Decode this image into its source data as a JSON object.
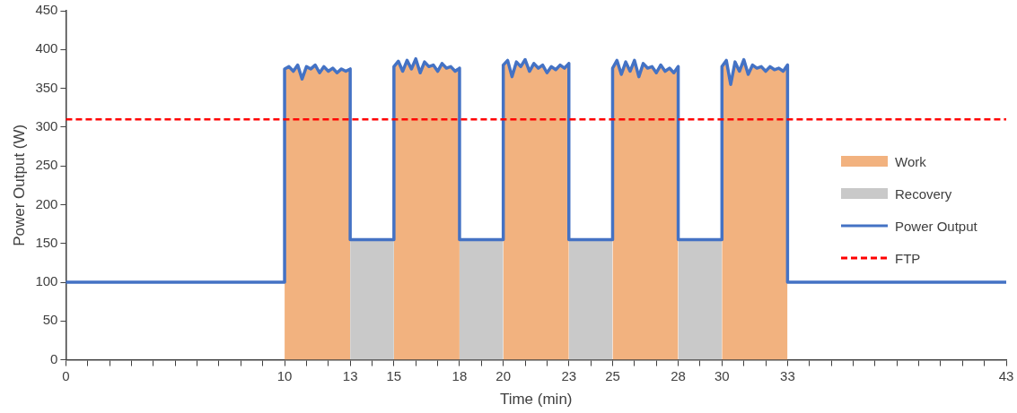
{
  "chart_data": {
    "type": "line",
    "xlabel": "Time (min)",
    "ylabel": "Power Output (W)",
    "xlim": [
      0,
      43
    ],
    "ylim": [
      0,
      450
    ],
    "yticks": [
      0,
      50,
      100,
      150,
      200,
      250,
      300,
      350,
      400,
      450
    ],
    "xticks": [
      0,
      {
        "value": 1,
        "label": null
      },
      {
        "value": 2,
        "label": null
      },
      {
        "value": 3,
        "label": null
      },
      {
        "value": 4,
        "label": null
      },
      {
        "value": 5,
        "label": null
      },
      {
        "value": 6,
        "label": null
      },
      {
        "value": 7,
        "label": null
      },
      {
        "value": 8,
        "label": null
      },
      {
        "value": 9,
        "label": null
      },
      10,
      {
        "value": 11,
        "label": null
      },
      {
        "value": 12,
        "label": null
      },
      13,
      {
        "value": 14,
        "label": null
      },
      15,
      {
        "value": 16,
        "label": null
      },
      {
        "value": 17,
        "label": null
      },
      18,
      {
        "value": 19,
        "label": null
      },
      20,
      {
        "value": 21,
        "label": null
      },
      {
        "value": 22,
        "label": null
      },
      23,
      {
        "value": 24,
        "label": null
      },
      25,
      {
        "value": 26,
        "label": null
      },
      {
        "value": 27,
        "label": null
      },
      28,
      {
        "value": 29,
        "label": null
      },
      30,
      {
        "value": 31,
        "label": null
      },
      {
        "value": 32,
        "label": null
      },
      33,
      {
        "value": 34,
        "label": null
      },
      {
        "value": 35,
        "label": null
      },
      {
        "value": 36,
        "label": null
      },
      {
        "value": 37,
        "label": null
      },
      {
        "value": 38,
        "label": null
      },
      {
        "value": 39,
        "label": null
      },
      {
        "value": 40,
        "label": null
      },
      {
        "value": 41,
        "label": null
      },
      {
        "value": 42,
        "label": null
      },
      43
    ],
    "grid": false,
    "legend": "right",
    "marker": "none",
    "series": [
      {
        "name": "Work",
        "type": "area",
        "color": "#f2b27f",
        "x": [
          10,
          10.2,
          10.4,
          10.6,
          10.8,
          11,
          11.2,
          11.4,
          11.6,
          11.8,
          12,
          12.2,
          12.4,
          12.6,
          12.8,
          13,
          14,
          15,
          15.2,
          15.4,
          15.6,
          15.8,
          16,
          16.2,
          16.4,
          16.6,
          16.8,
          17,
          17.2,
          17.4,
          17.6,
          17.8,
          18,
          19,
          20,
          20.2,
          20.4,
          20.6,
          20.8,
          21,
          21.2,
          21.4,
          21.6,
          21.8,
          22,
          22.2,
          22.4,
          22.6,
          22.8,
          23,
          24,
          25,
          25.2,
          25.4,
          25.6,
          25.8,
          26,
          26.2,
          26.4,
          26.6,
          26.8,
          27,
          27.2,
          27.4,
          27.6,
          27.8,
          28,
          29,
          30,
          30.2,
          30.4,
          30.6,
          30.8,
          31,
          31.2,
          31.4,
          31.6,
          31.8,
          32,
          32.2,
          32.4,
          32.6,
          32.8,
          33
        ],
        "values": [
          375,
          378,
          372,
          380,
          362,
          378,
          375,
          380,
          370,
          378,
          372,
          376,
          370,
          375,
          372,
          375,
          null,
          378,
          385,
          372,
          386,
          375,
          388,
          370,
          384,
          378,
          380,
          372,
          382,
          376,
          378,
          372,
          376,
          null,
          380,
          386,
          365,
          384,
          378,
          387,
          372,
          382,
          376,
          380,
          370,
          378,
          374,
          380,
          376,
          382,
          null,
          376,
          386,
          368,
          384,
          372,
          386,
          365,
          382,
          376,
          378,
          370,
          380,
          372,
          376,
          370,
          378,
          null,
          378,
          386,
          355,
          384,
          372,
          387,
          368,
          380,
          376,
          378,
          372,
          378,
          374,
          376,
          372,
          380
        ]
      },
      {
        "name": "Recovery",
        "type": "area",
        "color": "#c9c9c9",
        "x": [
          13,
          15,
          16,
          18,
          20,
          21,
          23,
          25,
          26,
          28,
          30
        ],
        "values": [
          155,
          155,
          null,
          155,
          155,
          null,
          155,
          155,
          null,
          155,
          155
        ]
      },
      {
        "name": "Power Output",
        "color": "#4472c4",
        "x": [
          0,
          10,
          10,
          10.2,
          10.4,
          10.6,
          10.8,
          11,
          11.2,
          11.4,
          11.6,
          11.8,
          12,
          12.2,
          12.4,
          12.6,
          12.8,
          13,
          13,
          15,
          15,
          15.2,
          15.4,
          15.6,
          15.8,
          16,
          16.2,
          16.4,
          16.6,
          16.8,
          17,
          17.2,
          17.4,
          17.6,
          17.8,
          18,
          18,
          20,
          20,
          20.2,
          20.4,
          20.6,
          20.8,
          21,
          21.2,
          21.4,
          21.6,
          21.8,
          22,
          22.2,
          22.4,
          22.6,
          22.8,
          23,
          23,
          25,
          25,
          25.2,
          25.4,
          25.6,
          25.8,
          26,
          26.2,
          26.4,
          26.6,
          26.8,
          27,
          27.2,
          27.4,
          27.6,
          27.8,
          28,
          28,
          30,
          30,
          30.2,
          30.4,
          30.6,
          30.8,
          31,
          31.2,
          31.4,
          31.6,
          31.8,
          32,
          32.2,
          32.4,
          32.6,
          32.8,
          33,
          33,
          43
        ],
        "values": [
          100,
          100,
          375,
          378,
          372,
          380,
          362,
          378,
          375,
          380,
          370,
          378,
          372,
          376,
          370,
          375,
          372,
          375,
          155,
          155,
          378,
          385,
          372,
          386,
          375,
          388,
          370,
          384,
          378,
          380,
          372,
          382,
          376,
          378,
          372,
          376,
          155,
          155,
          380,
          386,
          365,
          384,
          378,
          387,
          372,
          382,
          376,
          380,
          370,
          378,
          374,
          380,
          376,
          382,
          155,
          155,
          376,
          386,
          368,
          384,
          372,
          386,
          365,
          382,
          376,
          378,
          370,
          380,
          372,
          376,
          370,
          378,
          155,
          155,
          378,
          386,
          355,
          384,
          372,
          387,
          368,
          380,
          376,
          378,
          372,
          378,
          374,
          376,
          372,
          380,
          100,
          100
        ]
      }
    ],
    "ref_lines": [
      {
        "axis": "y",
        "value": 310,
        "label": "FTP",
        "color": "#ff0000",
        "line_style": "dashed"
      }
    ]
  }
}
